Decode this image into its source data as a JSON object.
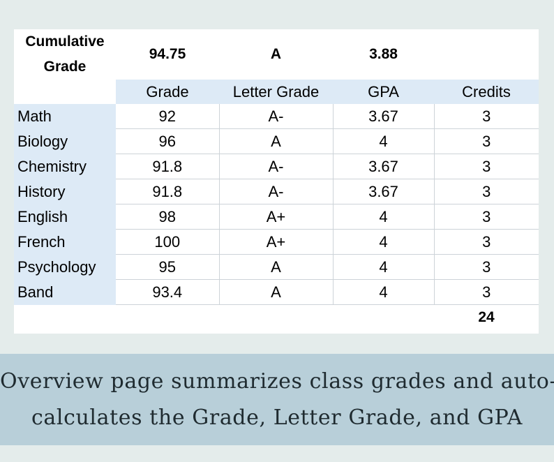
{
  "summary": {
    "label_line1": "Cumulative",
    "label_line2": "Grade",
    "grade": "94.75",
    "letter": "A",
    "gpa": "3.88"
  },
  "headers": {
    "grade": "Grade",
    "letter": "Letter Grade",
    "gpa": "GPA",
    "credits": "Credits"
  },
  "rows": [
    {
      "subject": "Math",
      "grade": "92",
      "letter": "A-",
      "gpa": "3.67",
      "credits": "3"
    },
    {
      "subject": "Biology",
      "grade": "96",
      "letter": "A",
      "gpa": "4",
      "credits": "3"
    },
    {
      "subject": "Chemistry",
      "grade": "91.8",
      "letter": "A-",
      "gpa": "3.67",
      "credits": "3"
    },
    {
      "subject": "History",
      "grade": "91.8",
      "letter": "A-",
      "gpa": "3.67",
      "credits": "3"
    },
    {
      "subject": "English",
      "grade": "98",
      "letter": "A+",
      "gpa": "4",
      "credits": "3"
    },
    {
      "subject": "French",
      "grade": "100",
      "letter": "A+",
      "gpa": "4",
      "credits": "3"
    },
    {
      "subject": "Psychology",
      "grade": "95",
      "letter": "A",
      "gpa": "4",
      "credits": "3"
    },
    {
      "subject": "Band",
      "grade": "93.4",
      "letter": "A",
      "gpa": "4",
      "credits": "3"
    }
  ],
  "total_credits": "24",
  "caption": {
    "line1": "Overview page summarizes class grades and auto-",
    "line2": "calculates the Grade, Letter Grade, and GPA"
  },
  "colors": {
    "background": "#e4eceb",
    "header_fill": "#ddeaf6",
    "caption_band": "#b8cfd9"
  }
}
